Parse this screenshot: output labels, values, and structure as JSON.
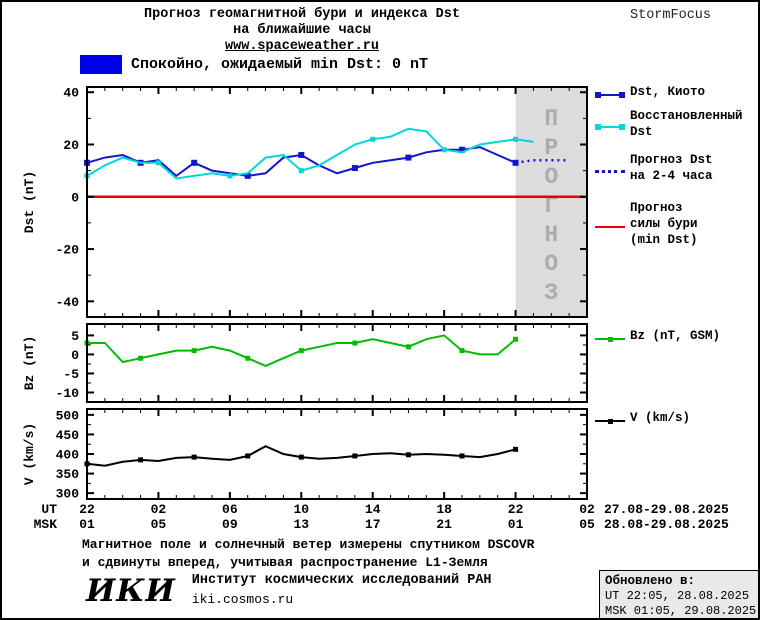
{
  "header": {
    "title_line1": "Прогноз геомагнитной бури и индекса Dst",
    "title_line2": "на ближайшие часы",
    "site": "www.spaceweather.ru",
    "brand": "StormFocus"
  },
  "status": {
    "label": "Спокойно, ожидаемый min Dst: 0 nT",
    "swatch_color": "#0000E6"
  },
  "colors": {
    "dst_kyoto": "#1515CD",
    "dst_restored": "#00D7D7",
    "dst_forecast": "#1515CD",
    "storm_forecast": "#EA0000",
    "bz": "#00BB00",
    "v": "#000000",
    "forecast_region_fill": "#DCDCDC",
    "forecast_region_text": "#ACACAC"
  },
  "legend": {
    "dst_kyoto": "Dst, Киото",
    "restored_line1": "Восстановленный",
    "restored_line2": "Dst",
    "forecast_line1": "Прогноз Dst",
    "forecast_line2": "на 2-4 часа",
    "storm_line1": "Прогноз",
    "storm_line2": "силы бури",
    "storm_line3": "(min Dst)",
    "bz": "Bz (nT, GSM)",
    "v": "V (km/s)"
  },
  "xaxis": {
    "tick_hours": [
      0,
      4,
      8,
      12,
      16,
      20,
      24,
      28
    ],
    "ut_prefix": "UT",
    "msk_prefix": "MSK",
    "ut_labels": [
      "22",
      "02",
      "06",
      "10",
      "14",
      "18",
      "22",
      "02"
    ],
    "msk_labels": [
      "01",
      "05",
      "09",
      "13",
      "17",
      "21",
      "01",
      "05"
    ],
    "ut_daterange": "27.08-29.08.2025",
    "msk_daterange": "28.08-29.08.2025"
  },
  "chart_data": [
    {
      "id": "dst",
      "type": "line",
      "ylabel": "Dst (nT)",
      "ylim": [
        -46,
        42
      ],
      "yticks": [
        40,
        20,
        0,
        -20,
        -40
      ],
      "yticks_minor": [
        30,
        10,
        -10,
        -30
      ],
      "xlim": [
        0,
        28
      ],
      "forecast_region": {
        "x_start": 24,
        "x_end": 28,
        "label": "ПРОГНОЗ"
      },
      "series": [
        {
          "id": "dst-kyoto",
          "name": "Dst, Киото",
          "color_key": "dst_kyoto",
          "style": "solid",
          "marker_every": 3,
          "marker_size": 6,
          "x": [
            0,
            1,
            2,
            3,
            4,
            5,
            6,
            7,
            8,
            9,
            10,
            11,
            12,
            13,
            14,
            15,
            16,
            17,
            18,
            19,
            20,
            21,
            22,
            23,
            24
          ],
          "values": [
            13,
            15,
            16,
            13,
            14,
            8,
            13,
            10,
            9,
            8,
            9,
            15,
            16,
            12,
            9,
            11,
            13,
            14,
            15,
            17,
            18,
            18,
            19,
            16,
            13
          ]
        },
        {
          "id": "dst-restored",
          "name": "Восстановленный Dst",
          "color_key": "dst_restored",
          "style": "solid",
          "marker_every": 4,
          "marker_size": 5,
          "x": [
            0,
            1,
            2,
            3,
            4,
            5,
            6,
            7,
            8,
            9,
            10,
            11,
            12,
            13,
            14,
            15,
            16,
            17,
            18,
            19,
            20,
            21,
            22,
            23,
            24,
            25
          ],
          "values": [
            8,
            12,
            15,
            13,
            13,
            7,
            8,
            9,
            8,
            9,
            15,
            16,
            10,
            12,
            16,
            20,
            22,
            23,
            26,
            25,
            18,
            17,
            20,
            21,
            22,
            21
          ]
        },
        {
          "id": "dst-forecast",
          "name": "Прогноз Dst на 2-4 часа",
          "color_key": "dst_forecast",
          "style": "dotted",
          "x": [
            24,
            25,
            26,
            27
          ],
          "values": [
            13,
            14,
            14,
            14
          ]
        },
        {
          "id": "storm-min-dst",
          "name": "Прогноз силы бури (min Dst)",
          "color_key": "storm_forecast",
          "style": "solid",
          "width": 2.5,
          "x": [
            0,
            28
          ],
          "values": [
            0,
            0
          ]
        }
      ]
    },
    {
      "id": "bz",
      "type": "line",
      "ylabel": "Bz (nT)",
      "ylim": [
        -12.5,
        8
      ],
      "yticks": [
        5,
        0,
        -5,
        -10
      ],
      "yticks_minor": [
        2.5,
        -2.5,
        -7.5
      ],
      "xlim": [
        0,
        28
      ],
      "series": [
        {
          "id": "bz-gsm",
          "name": "Bz (nT, GSM)",
          "color_key": "bz",
          "style": "solid",
          "marker_every": 3,
          "marker_size": 5,
          "x": [
            0,
            1,
            2,
            3,
            4,
            5,
            6,
            7,
            8,
            9,
            10,
            11,
            12,
            13,
            14,
            15,
            16,
            17,
            18,
            19,
            20,
            21,
            22,
            23,
            24
          ],
          "values": [
            3,
            3,
            -2,
            -1,
            0,
            1,
            1,
            2,
            1,
            -1,
            -3,
            -1,
            1,
            2,
            3,
            3,
            4,
            3,
            2,
            4,
            5,
            1,
            0,
            0,
            4
          ]
        }
      ]
    },
    {
      "id": "v",
      "type": "line",
      "ylabel": "V (km/s)",
      "ylim": [
        285,
        515
      ],
      "yticks": [
        500,
        450,
        400,
        350,
        300
      ],
      "yticks_minor": [
        475,
        425,
        375,
        325
      ],
      "xlim": [
        0,
        28
      ],
      "series": [
        {
          "id": "solar-wind-speed",
          "name": "V (km/s)",
          "color_key": "v",
          "style": "solid",
          "marker_every": 3,
          "marker_size": 5,
          "x": [
            0,
            1,
            2,
            3,
            4,
            5,
            6,
            7,
            8,
            9,
            10,
            11,
            12,
            13,
            14,
            15,
            16,
            17,
            18,
            19,
            20,
            21,
            22,
            23,
            24
          ],
          "values": [
            375,
            370,
            380,
            385,
            382,
            390,
            392,
            388,
            385,
            395,
            420,
            400,
            392,
            388,
            390,
            395,
            400,
            402,
            398,
            400,
            398,
            395,
            392,
            400,
            412
          ]
        }
      ]
    }
  ],
  "footer": {
    "note_line1": "Магнитное поле и солнечный ветер измерены спутником DSCOVR",
    "note_line2": "и сдвинуты вперед, учитывая распространение L1-Земля",
    "logo": "ИКИ",
    "institute": "Институт космических исследований РАН",
    "site": "iki.cosmos.ru"
  },
  "updated": {
    "title": "Обновлено в:",
    "ut": "UT  22:05, 28.08.2025",
    "msk": "MSK 01:05, 29.08.2025"
  }
}
